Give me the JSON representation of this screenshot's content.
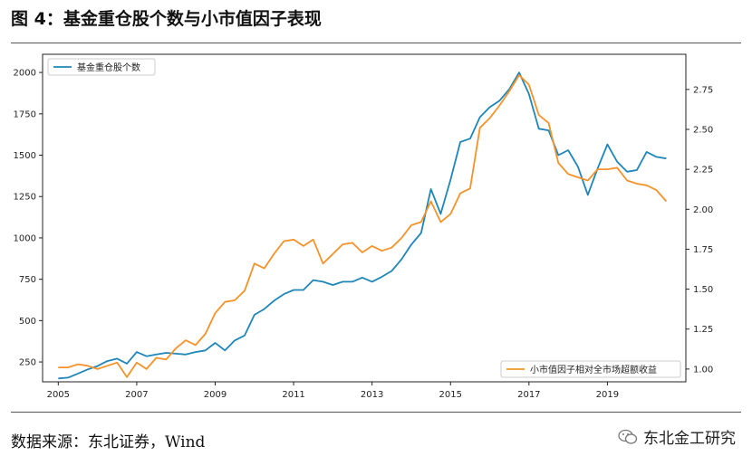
{
  "page": {
    "title": "图 4：基金重仓股个数与小市值因子表现",
    "source": "数据来源：东北证券，Wind",
    "watermark": "东北金工研究"
  },
  "colors": {
    "series1": "#1f86b8",
    "series2": "#f5932a"
  },
  "chart_data": {
    "type": "line",
    "title": "图 4：基金重仓股个数与小市值因子表现",
    "xlabel": "",
    "x_ticks": [
      "2005",
      "2007",
      "2009",
      "2011",
      "2013",
      "2015",
      "2017",
      "2019"
    ],
    "x_range": [
      2004.6,
      2021.0
    ],
    "y_left": {
      "range": [
        130,
        2110
      ],
      "ticks": [
        250,
        500,
        750,
        1000,
        1250,
        1500,
        1750,
        2000
      ]
    },
    "y_right": {
      "range": [
        0.92,
        2.97
      ],
      "ticks": [
        "1.00",
        "1.25",
        "1.50",
        "1.75",
        "2.00",
        "2.25",
        "2.50",
        "2.75"
      ]
    },
    "legend_left": "top-left",
    "legend_right": "bottom-right",
    "series": [
      {
        "name": "基金重仓股个数",
        "axis": "left",
        "x": [
          2005.0,
          2005.25,
          2005.5,
          2005.75,
          2006.0,
          2006.25,
          2006.5,
          2006.75,
          2007.0,
          2007.25,
          2007.5,
          2007.75,
          2008.0,
          2008.25,
          2008.5,
          2008.75,
          2009.0,
          2009.25,
          2009.5,
          2009.75,
          2010.0,
          2010.25,
          2010.5,
          2010.75,
          2011.0,
          2011.25,
          2011.5,
          2011.75,
          2012.0,
          2012.25,
          2012.5,
          2012.75,
          2013.0,
          2013.25,
          2013.5,
          2013.75,
          2014.0,
          2014.25,
          2014.5,
          2014.75,
          2015.0,
          2015.25,
          2015.5,
          2015.75,
          2016.0,
          2016.25,
          2016.5,
          2016.75,
          2017.0,
          2017.25,
          2017.5,
          2017.75,
          2018.0,
          2018.25,
          2018.5,
          2018.75,
          2019.0,
          2019.25,
          2019.5,
          2019.75,
          2020.0,
          2020.25,
          2020.5
        ],
        "values": [
          150,
          155,
          180,
          205,
          225,
          255,
          270,
          240,
          310,
          285,
          295,
          305,
          300,
          295,
          310,
          320,
          365,
          320,
          380,
          410,
          535,
          570,
          620,
          660,
          685,
          685,
          745,
          735,
          715,
          735,
          735,
          760,
          735,
          765,
          800,
          870,
          960,
          1030,
          1295,
          1145,
          1350,
          1580,
          1600,
          1730,
          1790,
          1830,
          1900,
          2000,
          1870,
          1660,
          1650,
          1500,
          1530,
          1430,
          1260,
          1420,
          1565,
          1460,
          1400,
          1410,
          1520,
          1490,
          1480
        ]
      },
      {
        "name": "小市值因子相对全市场超额收益",
        "axis": "right",
        "x": [
          2005.0,
          2005.25,
          2005.5,
          2005.75,
          2006.0,
          2006.25,
          2006.5,
          2006.75,
          2007.0,
          2007.25,
          2007.5,
          2007.75,
          2008.0,
          2008.25,
          2008.5,
          2008.75,
          2009.0,
          2009.25,
          2009.5,
          2009.75,
          2010.0,
          2010.25,
          2010.5,
          2010.75,
          2011.0,
          2011.25,
          2011.5,
          2011.75,
          2012.0,
          2012.25,
          2012.5,
          2012.75,
          2013.0,
          2013.25,
          2013.5,
          2013.75,
          2014.0,
          2014.25,
          2014.5,
          2014.75,
          2015.0,
          2015.25,
          2015.5,
          2015.75,
          2016.0,
          2016.25,
          2016.5,
          2016.75,
          2017.0,
          2017.25,
          2017.5,
          2017.75,
          2018.0,
          2018.25,
          2018.5,
          2018.75,
          2019.0,
          2019.25,
          2019.5,
          2019.75,
          2020.0,
          2020.25,
          2020.5
        ],
        "values": [
          1.01,
          1.01,
          1.03,
          1.02,
          1.0,
          1.02,
          1.04,
          0.95,
          1.04,
          1.0,
          1.07,
          1.06,
          1.13,
          1.18,
          1.15,
          1.22,
          1.35,
          1.42,
          1.43,
          1.49,
          1.66,
          1.63,
          1.72,
          1.8,
          1.81,
          1.77,
          1.81,
          1.66,
          1.72,
          1.78,
          1.79,
          1.73,
          1.77,
          1.74,
          1.76,
          1.82,
          1.9,
          1.92,
          2.05,
          1.92,
          1.97,
          2.1,
          2.13,
          2.51,
          2.57,
          2.65,
          2.74,
          2.84,
          2.78,
          2.59,
          2.54,
          2.29,
          2.22,
          2.2,
          2.18,
          2.25,
          2.25,
          2.26,
          2.18,
          2.16,
          2.15,
          2.12,
          2.05
        ]
      }
    ]
  }
}
